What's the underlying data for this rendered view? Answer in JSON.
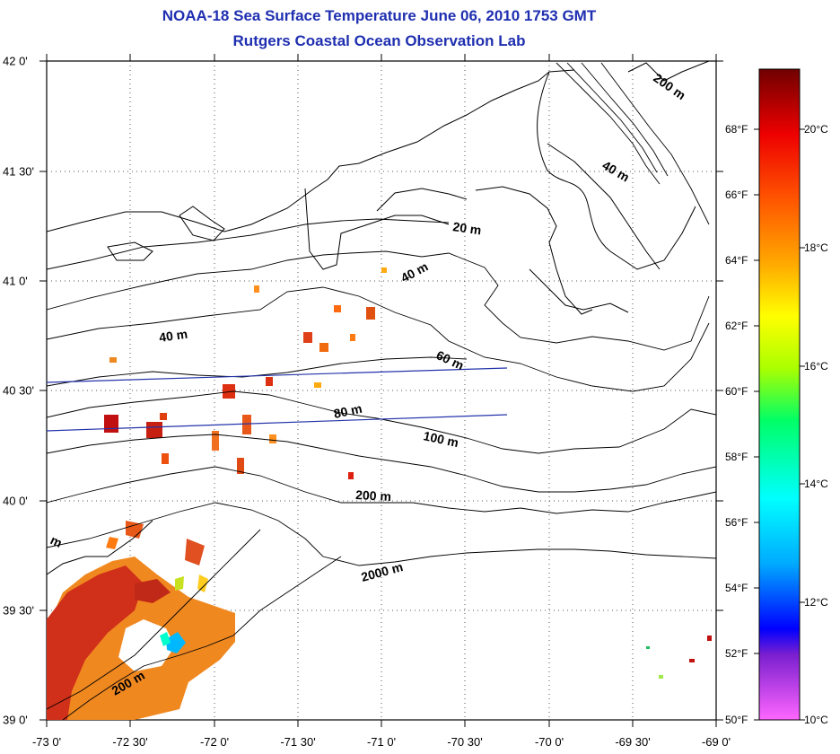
{
  "title": "NOAA-18 Sea Surface Temperature June 06, 2010 1753 GMT",
  "subtitle": "Rutgers Coastal Ocean Observation Lab",
  "axes": {
    "x_ticks": [
      "-73 0'",
      "-72 30'",
      "-72 0'",
      "-71 30'",
      "-71 0'",
      "-70 30'",
      "-70 0'",
      "-69 30'",
      "-69 0'"
    ],
    "y_ticks": [
      "42 0'",
      "41 30'",
      "41 0'",
      "40 30'",
      "40 0'",
      "39 30'",
      "39 0'"
    ]
  },
  "isobath_labels": [
    "200 m",
    "40 m",
    "20 m",
    "40 m",
    "40 m",
    "60 m",
    "80 m",
    "100 m",
    "200 m",
    "2000 m",
    "200 m",
    "m"
  ],
  "colorbar": {
    "fahrenheit": [
      "68°F",
      "66°F",
      "64°F",
      "62°F",
      "60°F",
      "58°F",
      "56°F",
      "54°F",
      "52°F",
      "50°F"
    ],
    "celsius": [
      "20°C",
      "18°C",
      "16°C",
      "14°C",
      "12°C",
      "10°C"
    ],
    "colors": [
      "#ff66ff",
      "#7a1fcf",
      "#0000ff",
      "#00aaff",
      "#00ffff",
      "#00ff66",
      "#aaff00",
      "#ffff00",
      "#ffaa00",
      "#ff5500",
      "#ee0000",
      "#990000",
      "#700000"
    ]
  }
}
